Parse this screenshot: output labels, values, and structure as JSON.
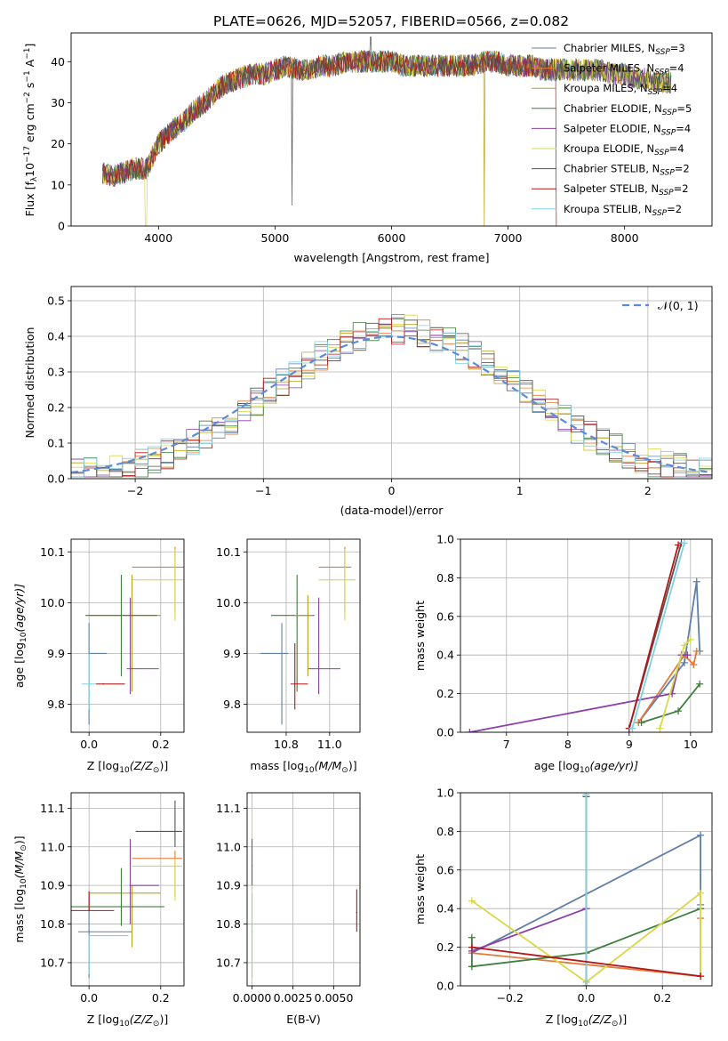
{
  "title": "PLATE=0626, MJD=52057, FIBERID=0566, z=0.082",
  "colors": {
    "series": [
      "#5f7fa8",
      "#e07b39",
      "#b5a020",
      "#3f7f3f",
      "#8b3fa8",
      "#d8d848",
      "#555555",
      "#b01818",
      "#7fd0e0"
    ],
    "norm_curve": "#5b8bd8",
    "grid": "#b0b0b0"
  },
  "chart_data": [
    {
      "type": "line",
      "id": "spectrum",
      "xlabel": "wavelength [Angstrom, rest frame]",
      "ylabel_main": "Flux [f",
      "ylabel_sub": "λ",
      "ylabel_rest": "10",
      "ylabel_sup": "−17",
      "ylabel_units": " erg cm",
      "ylabel_sup2": "−2",
      "ylabel_units2": " s",
      "ylabel_sup3": "−1",
      "ylabel_units3": " A",
      "ylabel_sup4": "−1",
      "ylabel_end": "]",
      "xlim": [
        3250,
        8750
      ],
      "ylim": [
        0,
        47
      ],
      "xticks": [
        "4000",
        "5000",
        "6000",
        "7000",
        "8000"
      ],
      "xtick_values": [
        4000,
        5000,
        6000,
        7000,
        8000
      ],
      "yticks": [
        "0",
        "10",
        "20",
        "30",
        "40"
      ],
      "ytick_values": [
        0,
        10,
        20,
        30,
        40
      ],
      "grid": false,
      "legend_position": "top-right",
      "envelope": {
        "x": [
          3520,
          3600,
          3700,
          3800,
          3900,
          4000,
          4100,
          4200,
          4300,
          4400,
          4500,
          4600,
          4700,
          4800,
          4900,
          5000,
          5100,
          5200,
          5300,
          5400,
          5500,
          5600,
          5700,
          5800,
          5900,
          6000,
          6100,
          6200,
          6300,
          6400,
          6500,
          6600,
          6700,
          6800,
          6900,
          7000,
          7100,
          7200,
          7300,
          7400,
          7500,
          7600,
          7700,
          7800,
          7900,
          8000,
          8100,
          8200,
          8300,
          8400,
          8500
        ],
        "y": [
          13,
          12,
          13,
          14,
          14,
          20,
          23,
          25,
          28,
          30,
          33,
          35,
          36,
          37,
          37,
          38,
          39,
          38,
          38,
          39,
          39,
          40,
          40,
          40,
          40,
          40,
          39,
          39,
          39,
          39,
          39,
          39,
          39,
          40,
          40,
          39,
          39,
          39,
          38,
          38,
          38,
          38,
          38,
          38,
          37,
          37,
          36,
          36,
          35,
          35,
          34
        ]
      },
      "legend": [
        {
          "label": "Chabrier MILES, N",
          "sub": "SSP",
          "tail": "=3"
        },
        {
          "label": "Salpeter MILES, N",
          "sub": "SSP",
          "tail": "=4"
        },
        {
          "label": "Kroupa MILES, N",
          "sub": "SSP",
          "tail": "=4"
        },
        {
          "label": "Chabrier ELODIE, N",
          "sub": "SSP",
          "tail": "=5"
        },
        {
          "label": "Salpeter ELODIE, N",
          "sub": "SSP",
          "tail": "=4"
        },
        {
          "label": "Kroupa ELODIE, N",
          "sub": "SSP",
          "tail": "=4"
        },
        {
          "label": "Chabrier STELIB, N",
          "sub": "SSP",
          "tail": "=2"
        },
        {
          "label": "Salpeter STELIB, N",
          "sub": "SSP",
          "tail": "=2"
        },
        {
          "label": "Kroupa STELIB, N",
          "sub": "SSP",
          "tail": "=2"
        }
      ]
    },
    {
      "type": "line",
      "id": "residuals",
      "xlabel": "(data-model)/error",
      "ylabel": "Normed distribution",
      "xlim": [
        -2.5,
        2.5
      ],
      "ylim": [
        0,
        0.54
      ],
      "xticks": [
        "−2",
        "−1",
        "0",
        "1",
        "2"
      ],
      "xtick_values": [
        -2,
        -1,
        0,
        1,
        2
      ],
      "yticks": [
        "0.0",
        "0.1",
        "0.2",
        "0.3",
        "0.4",
        "0.5"
      ],
      "ytick_values": [
        0,
        0.1,
        0.2,
        0.3,
        0.4,
        0.5
      ],
      "grid": true,
      "legend_position": "top-right",
      "legend_label": "𝒩(0, 1)",
      "hist_bin_width": 0.1
    },
    {
      "type": "scatter",
      "id": "age-vs-Z",
      "xlabel": "Z [log",
      "xlabel_sub": "10",
      "xlabel_tail": "(Z/Z",
      "xlabel_sub2": "⊙",
      "xlabel_end": ")]",
      "ylabel": "age  [log",
      "ylabel_sub": "10",
      "ylabel_tail": "(age/yr)]",
      "xlim": [
        -0.05,
        0.265
      ],
      "ylim": [
        9.745,
        10.125
      ],
      "xticks": [
        "0.0",
        "0.2"
      ],
      "xtick_values": [
        0,
        0.2
      ],
      "yticks": [
        "9.8",
        "9.9",
        "10.0",
        "10.1"
      ],
      "ytick_values": [
        9.8,
        9.9,
        10.0,
        10.1
      ],
      "grid": true,
      "points": [
        {
          "x": 0.0,
          "y": 9.9,
          "xerr": [
            0.0,
            0.05
          ],
          "yerr": [
            0.14,
            0.06
          ],
          "s": 0
        },
        {
          "x": 0.24,
          "y": 10.07,
          "xerr": [
            0.12,
            0.03
          ],
          "yerr": [
            0.09,
            0.04
          ],
          "s": 1
        },
        {
          "x": 0.12,
          "y": 9.975,
          "xerr": [
            0.12,
            0.08
          ],
          "yerr": [
            0.15,
            0.08
          ],
          "s": 2
        },
        {
          "x": 0.09,
          "y": 9.975,
          "xerr": [
            0.1,
            0.1
          ],
          "yerr": [
            0.12,
            0.08
          ],
          "s": 3
        },
        {
          "x": 0.115,
          "y": 9.87,
          "xerr": [
            0.01,
            0.08
          ],
          "yerr": [
            0.05,
            0.14
          ],
          "s": 4
        },
        {
          "x": 0.0,
          "y": 9.84,
          "xerr": [
            0.02,
            0.1
          ],
          "yerr": [
            0.05,
            0.06
          ],
          "s": 8
        },
        {
          "x": 0.04,
          "y": 9.84,
          "xerr": [
            0.02,
            0.06
          ],
          "yerr": [
            0.0,
            0.0
          ],
          "s": 7
        },
        {
          "x": 0.24,
          "y": 10.045,
          "xerr": [
            0.12,
            0.03
          ],
          "yerr": [
            0.08,
            0.06
          ],
          "s": 5
        }
      ]
    },
    {
      "type": "scatter",
      "id": "age-vs-mass",
      "xlabel": "mass [log",
      "xlabel_sub": "10",
      "xlabel_tail": "(M/M",
      "xlabel_sub2": "⊙",
      "xlabel_end": ")]",
      "xlim": [
        10.62,
        11.14
      ],
      "ylim": [
        9.745,
        10.125
      ],
      "xticks": [
        "10.8",
        "11.0"
      ],
      "xtick_values": [
        10.8,
        11.0
      ],
      "yticks": [
        "9.8",
        "9.9",
        "10.0",
        "10.1"
      ],
      "ytick_values": [
        9.8,
        9.9,
        10.0,
        10.1
      ],
      "grid": true,
      "points": [
        {
          "x": 10.78,
          "y": 9.9,
          "xerr": [
            0.1,
            0.03
          ],
          "yerr": [
            0.14,
            0.06
          ],
          "s": 0
        },
        {
          "x": 11.07,
          "y": 10.07,
          "xerr": [
            0.12,
            0.03
          ],
          "yerr": [
            0.09,
            0.04
          ],
          "s": 1
        },
        {
          "x": 10.85,
          "y": 9.975,
          "xerr": [
            0.12,
            0.08
          ],
          "yerr": [
            0.15,
            0.08
          ],
          "s": 3
        },
        {
          "x": 10.95,
          "y": 9.87,
          "xerr": [
            0.05,
            0.1
          ],
          "yerr": [
            0.05,
            0.14
          ],
          "s": 4
        },
        {
          "x": 10.84,
          "y": 9.84,
          "xerr": [
            0.02,
            0.06
          ],
          "yerr": [
            0.05,
            0.08
          ],
          "s": 7
        },
        {
          "x": 11.07,
          "y": 10.045,
          "xerr": [
            0.12,
            0.05
          ],
          "yerr": [
            0.08,
            0.06
          ],
          "s": 5
        },
        {
          "x": 10.9,
          "y": 9.975,
          "xerr": [
            0.06,
            0.02
          ],
          "yerr": [
            0.12,
            0.04
          ],
          "s": 2
        }
      ]
    },
    {
      "type": "line",
      "id": "mass-weight-vs-age",
      "xlabel": "age  [log",
      "xlabel_sub": "10",
      "xlabel_tail": "(age/yr)]",
      "ylabel": "mass weight",
      "xlim": [
        6.25,
        10.35
      ],
      "ylim": [
        0,
        1.0
      ],
      "xticks": [
        "7",
        "8",
        "9",
        "10"
      ],
      "xtick_values": [
        7,
        8,
        9,
        10
      ],
      "yticks": [
        "0.0",
        "0.2",
        "0.4",
        "0.6",
        "0.8",
        "1.0"
      ],
      "ytick_values": [
        0,
        0.2,
        0.4,
        0.6,
        0.8,
        1.0
      ],
      "grid": true,
      "series": [
        {
          "s": 0,
          "x": [
            9.15,
            9.9,
            10.1,
            10.15
          ],
          "y": [
            0.05,
            0.36,
            0.78,
            0.42
          ]
        },
        {
          "s": 1,
          "x": [
            9.15,
            9.9,
            10.05,
            10.1
          ],
          "y": [
            0.05,
            0.4,
            0.35,
            0.42
          ]
        },
        {
          "s": 3,
          "x": [
            9.2,
            9.8,
            10.15
          ],
          "y": [
            0.05,
            0.11,
            0.25
          ]
        },
        {
          "s": 4,
          "x": [
            6.4,
            9.7,
            9.85,
            9.95
          ],
          "y": [
            0.0,
            0.2,
            0.4,
            0.4
          ]
        },
        {
          "s": 5,
          "x": [
            9.5,
            9.9,
            10.0
          ],
          "y": [
            0.02,
            0.45,
            0.48
          ]
        },
        {
          "s": 6,
          "x": [
            9.0,
            9.85
          ],
          "y": [
            0.02,
            0.98
          ]
        },
        {
          "s": 7,
          "x": [
            9.0,
            9.8
          ],
          "y": [
            0.02,
            0.97
          ]
        },
        {
          "s": 8,
          "x": [
            9.05,
            9.9
          ],
          "y": [
            0.02,
            0.98
          ]
        }
      ]
    },
    {
      "type": "scatter",
      "id": "mass-vs-Z",
      "xlabel": "Z [log",
      "xlabel_sub": "10",
      "xlabel_tail": "(Z/Z",
      "xlabel_sub2": "⊙",
      "xlabel_end": ")]",
      "ylabel": "mass [log",
      "ylabel_sub": "10",
      "ylabel_tail": "(M/M",
      "ylabel_sub2": "⊙",
      "ylabel_end": ")]",
      "xlim": [
        -0.05,
        0.265
      ],
      "ylim": [
        10.64,
        11.14
      ],
      "xticks": [
        "0.0",
        "0.2"
      ],
      "xtick_values": [
        0,
        0.2
      ],
      "yticks": [
        "10.7",
        "10.8",
        "10.9",
        "11.0",
        "11.1"
      ],
      "ytick_values": [
        10.7,
        10.8,
        10.9,
        11.0,
        11.1
      ],
      "grid": true,
      "points": [
        {
          "x": 0.0,
          "y": 10.78,
          "xerr": [
            0.03,
            0.12
          ],
          "yerr": [
            0.12,
            0.1
          ],
          "s": 0
        },
        {
          "x": 0.24,
          "y": 10.97,
          "xerr": [
            0.12,
            0.02
          ],
          "yerr": [
            0.1,
            0.02
          ],
          "s": 1
        },
        {
          "x": 0.12,
          "y": 10.88,
          "xerr": [
            0.12,
            0.08
          ],
          "yerr": [
            0.14,
            0.02
          ],
          "s": 2
        },
        {
          "x": 0.09,
          "y": 10.845,
          "xerr": [
            0.15,
            0.12
          ],
          "yerr": [
            0.05,
            0.1
          ],
          "s": 3
        },
        {
          "x": 0.115,
          "y": 10.9,
          "xerr": [
            0.0,
            0.08
          ],
          "yerr": [
            0.1,
            0.12
          ],
          "s": 4
        },
        {
          "x": 0.24,
          "y": 10.95,
          "xerr": [
            0.12,
            0.02
          ],
          "yerr": [
            0.09,
            0.02
          ],
          "s": 5
        },
        {
          "x": 0.0,
          "y": 10.835,
          "xerr": [
            0.05,
            0.07
          ],
          "yerr": [
            0.0,
            0.05
          ],
          "s": 7
        },
        {
          "x": 0.0,
          "y": 10.77,
          "xerr": [
            0.0,
            0.11
          ],
          "yerr": [
            0.1,
            0.0
          ],
          "s": 8
        },
        {
          "x": 0.24,
          "y": 11.04,
          "xerr": [
            0.11,
            0.02
          ],
          "yerr": [
            0.04,
            0.08
          ],
          "s": 6
        }
      ]
    },
    {
      "type": "scatter",
      "id": "mass-vs-EBV",
      "xlabel": "E(B-V)",
      "xlim": [
        -0.0003,
        0.0066
      ],
      "ylim": [
        10.64,
        11.14
      ],
      "xticks": [
        "0.0000",
        "0.0025",
        "0.0050"
      ],
      "xtick_values": [
        0,
        0.0025,
        0.005
      ],
      "yticks": [
        "10.7",
        "10.8",
        "10.9",
        "11.0",
        "11.1"
      ],
      "ytick_values": [
        10.7,
        10.8,
        10.9,
        11.0,
        11.1
      ],
      "grid": true,
      "points": [
        {
          "x": 0.0,
          "y": 10.9,
          "yerr": [
            0.25,
            0.2
          ],
          "s": 5
        },
        {
          "x": 0.0,
          "y": 10.95,
          "yerr": [
            0.05,
            0.07
          ],
          "s": 4
        },
        {
          "x": 0.0,
          "y": 10.78,
          "yerr": [
            0.12,
            0.1
          ],
          "s": 8
        },
        {
          "x": 0.0064,
          "y": 10.83,
          "yerr": [
            0.05,
            0.06
          ],
          "s": 7
        }
      ]
    },
    {
      "type": "line",
      "id": "mass-weight-vs-Z",
      "xlabel": "Z [log",
      "xlabel_sub": "10",
      "xlabel_tail": "(Z/Z",
      "xlabel_sub2": "⊙",
      "xlabel_end": ")]",
      "ylabel": "mass weight",
      "xlim": [
        -0.33,
        0.33
      ],
      "ylim": [
        0,
        1.0
      ],
      "xticks": [
        "−0.2",
        "0.0",
        "0.2"
      ],
      "xtick_values": [
        -0.2,
        0.0,
        0.2
      ],
      "yticks": [
        "0.0",
        "0.2",
        "0.4",
        "0.6",
        "0.8",
        "1.0"
      ],
      "ytick_values": [
        0,
        0.2,
        0.4,
        0.6,
        0.8,
        1.0
      ],
      "grid": true,
      "series": [
        {
          "s": 0,
          "x": [
            -0.3,
            0.3,
            0.3
          ],
          "y": [
            0.17,
            0.78,
            0.42
          ]
        },
        {
          "s": 1,
          "x": [
            -0.3,
            0.3,
            0.3
          ],
          "y": [
            0.17,
            0.05,
            0.35
          ]
        },
        {
          "s": 3,
          "x": [
            -0.3,
            -0.3,
            0.0,
            0.3
          ],
          "y": [
            0.25,
            0.1,
            0.17,
            0.4
          ]
        },
        {
          "s": 4,
          "x": [
            -0.3,
            0.0,
            0.0
          ],
          "y": [
            0.18,
            0.4,
            0.0
          ]
        },
        {
          "s": 5,
          "x": [
            -0.3,
            0.0,
            0.3,
            0.3
          ],
          "y": [
            0.44,
            0.02,
            0.48,
            0.05
          ]
        },
        {
          "s": 6,
          "x": [
            0.0,
            0.0
          ],
          "y": [
            0.98,
            0.02
          ]
        },
        {
          "s": 8,
          "x": [
            0.0,
            0.0
          ],
          "y": [
            0.99,
            0.02
          ]
        },
        {
          "s": 7,
          "x": [
            -0.3,
            0.3
          ],
          "y": [
            0.2,
            0.05
          ]
        }
      ]
    }
  ]
}
